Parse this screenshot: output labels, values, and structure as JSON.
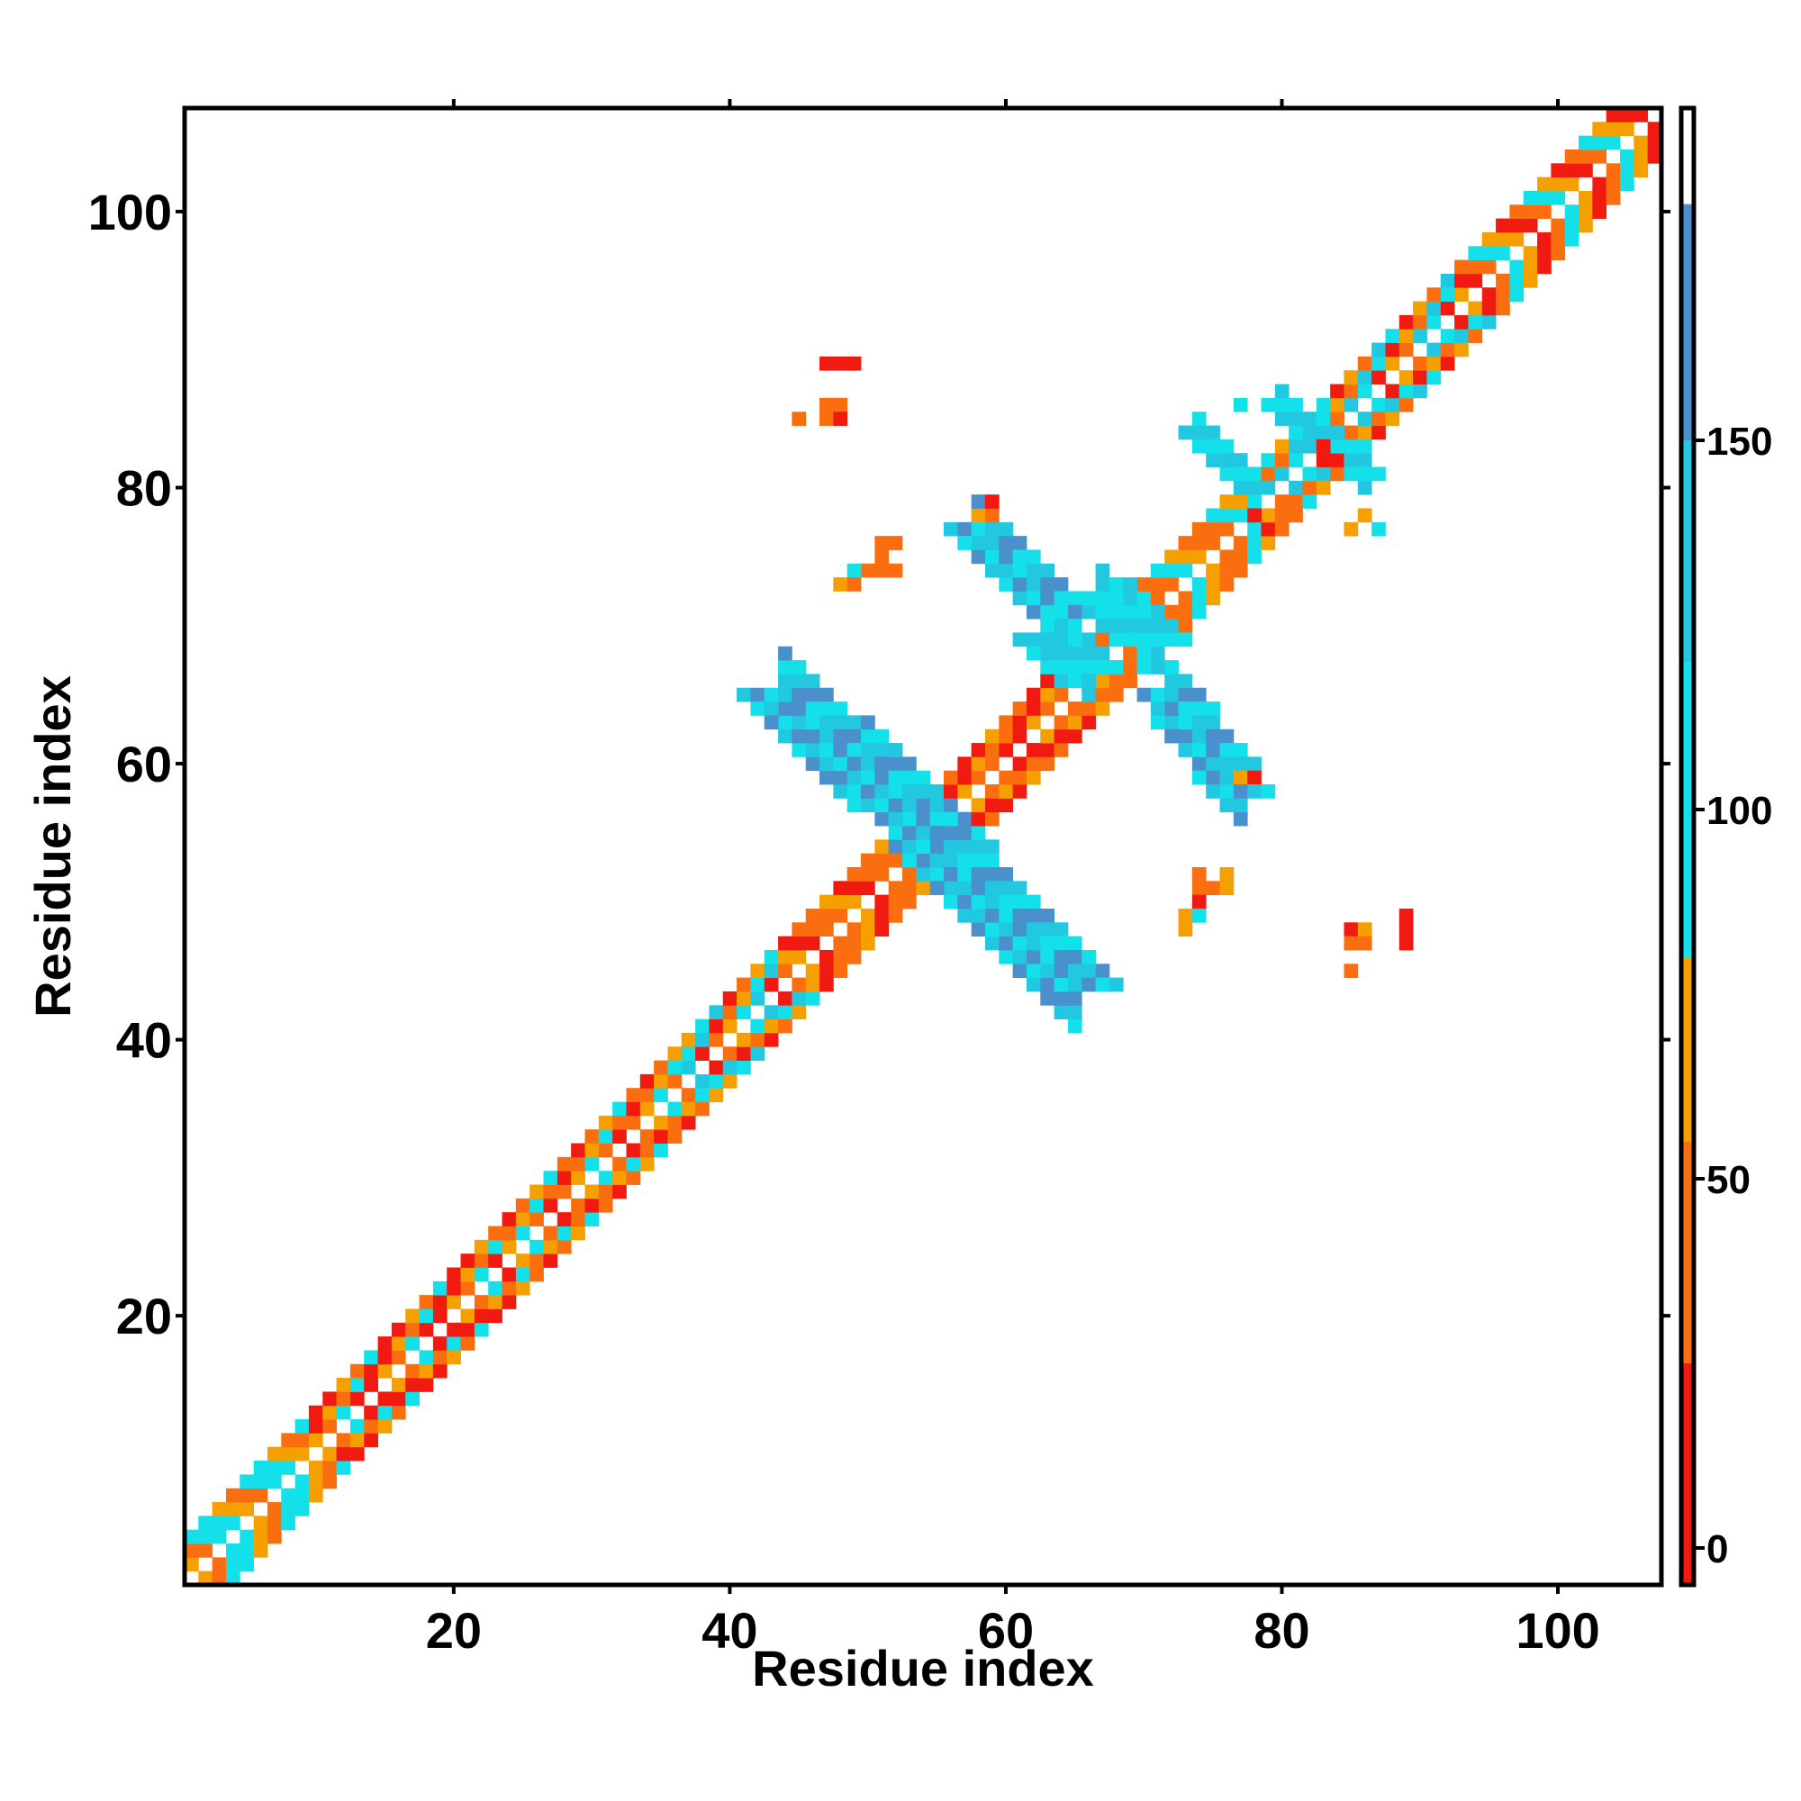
{
  "chart_data": {
    "type": "heatmap",
    "title": "",
    "xlabel": "Residue index",
    "ylabel": "Residue index",
    "xlim": [
      1,
      107
    ],
    "ylim": [
      1,
      107
    ],
    "x_ticks": [
      20,
      40,
      60,
      80,
      100
    ],
    "y_ticks": [
      20,
      40,
      60,
      80,
      100
    ],
    "colorbar": {
      "range": [
        -5,
        195
      ],
      "ticks": [
        0,
        50,
        100,
        150
      ],
      "bands": [
        {
          "from": -5,
          "to": 25,
          "color": "#f01a10"
        },
        {
          "from": 25,
          "to": 55,
          "color": "#fb6e10"
        },
        {
          "from": 55,
          "to": 80,
          "color": "#f5a000"
        },
        {
          "from": 80,
          "to": 120,
          "color": "#14e0ea"
        },
        {
          "from": 120,
          "to": 150,
          "color": "#22c8e0"
        },
        {
          "from": 150,
          "to": 182,
          "color": "#4a90cc"
        },
        {
          "from": 182,
          "to": 195,
          "color": "#ffffff"
        }
      ]
    },
    "palette": {
      "red": "#f01a10",
      "orange": "#fb6e10",
      "amber": "#f5a000",
      "cyan": "#14e0ea",
      "sky": "#22c8e0",
      "steel": "#4a90cc"
    },
    "diagonal_band": {
      "offsets": [
        -3,
        -2,
        -1,
        1,
        2,
        3
      ],
      "segments": [
        {
          "from": 1,
          "to": 10,
          "colors": [
            "cyan",
            "orange",
            "amber",
            "cyan"
          ]
        },
        {
          "from": 10,
          "to": 24,
          "colors": [
            "orange",
            "red",
            "cyan",
            "amber",
            "red"
          ]
        },
        {
          "from": 24,
          "to": 37,
          "colors": [
            "orange",
            "amber",
            "red",
            "cyan",
            "orange"
          ]
        },
        {
          "from": 37,
          "to": 44,
          "colors": [
            "cyan",
            "orange",
            "sky",
            "amber",
            "red"
          ]
        },
        {
          "from": 44,
          "to": 56,
          "colors": [
            "orange",
            "red",
            "amber",
            "orange"
          ]
        },
        {
          "from": 56,
          "to": 66,
          "colors": [
            "red",
            "orange",
            "amber",
            "red",
            "orange"
          ]
        },
        {
          "from": 66,
          "to": 80,
          "colors": [
            "orange",
            "amber",
            "cyan",
            "orange"
          ]
        },
        {
          "from": 80,
          "to": 93,
          "colors": [
            "cyan",
            "orange",
            "red",
            "sky",
            "amber"
          ]
        },
        {
          "from": 93,
          "to": 108,
          "colors": [
            "orange",
            "red",
            "amber",
            "cyan"
          ]
        }
      ]
    },
    "bridges": [
      {
        "start": [
          44,
          65
        ],
        "end": [
          56,
          54
        ],
        "width": 3,
        "colors": [
          "sky",
          "steel",
          "cyan"
        ]
      },
      {
        "start": [
          55,
          54
        ],
        "end": [
          65,
          44
        ],
        "width": 3,
        "colors": [
          "steel",
          "sky",
          "cyan"
        ]
      },
      {
        "start": [
          58,
          77
        ],
        "end": [
          64,
          71
        ],
        "width": 2,
        "colors": [
          "cyan",
          "sky",
          "steel"
        ]
      },
      {
        "start": [
          72,
          65
        ],
        "end": [
          77,
          58
        ],
        "width": 2,
        "colors": [
          "sky",
          "steel",
          "cyan"
        ]
      },
      {
        "start": [
          63,
          69
        ],
        "end": [
          66,
          67
        ],
        "width": 2,
        "colors": [
          "sky",
          "cyan"
        ]
      },
      {
        "start": [
          67,
          72
        ],
        "end": [
          71,
          69
        ],
        "width": 2,
        "colors": [
          "cyan",
          "sky"
        ]
      },
      {
        "start": [
          80,
          86
        ],
        "end": [
          86,
          81
        ],
        "width": 1,
        "colors": [
          "cyan",
          "sky"
        ]
      },
      {
        "start": [
          74,
          84
        ],
        "end": [
          78,
          80
        ],
        "width": 1,
        "colors": [
          "sky",
          "cyan"
        ]
      }
    ],
    "scattered": [
      {
        "x": 47,
        "y": 89,
        "color": "red"
      },
      {
        "x": 48,
        "y": 89,
        "color": "red"
      },
      {
        "x": 49,
        "y": 89,
        "color": "red"
      },
      {
        "x": 45,
        "y": 85,
        "color": "orange"
      },
      {
        "x": 47,
        "y": 86,
        "color": "orange"
      },
      {
        "x": 48,
        "y": 86,
        "color": "orange"
      },
      {
        "x": 47,
        "y": 85,
        "color": "orange"
      },
      {
        "x": 48,
        "y": 85,
        "color": "red"
      },
      {
        "x": 51,
        "y": 76,
        "color": "orange"
      },
      {
        "x": 52,
        "y": 76,
        "color": "orange"
      },
      {
        "x": 51,
        "y": 75,
        "color": "orange"
      },
      {
        "x": 50,
        "y": 74,
        "color": "orange"
      },
      {
        "x": 51,
        "y": 74,
        "color": "orange"
      },
      {
        "x": 52,
        "y": 74,
        "color": "orange"
      },
      {
        "x": 49,
        "y": 74,
        "color": "cyan"
      },
      {
        "x": 48,
        "y": 73,
        "color": "amber"
      },
      {
        "x": 49,
        "y": 73,
        "color": "orange"
      },
      {
        "x": 59,
        "y": 79,
        "color": "red"
      },
      {
        "x": 58,
        "y": 78,
        "color": "amber"
      },
      {
        "x": 59,
        "y": 78,
        "color": "orange"
      },
      {
        "x": 78,
        "y": 59,
        "color": "red"
      },
      {
        "x": 77,
        "y": 59,
        "color": "amber"
      },
      {
        "x": 74,
        "y": 52,
        "color": "orange"
      },
      {
        "x": 76,
        "y": 52,
        "color": "amber"
      },
      {
        "x": 74,
        "y": 51,
        "color": "orange"
      },
      {
        "x": 75,
        "y": 51,
        "color": "orange"
      },
      {
        "x": 76,
        "y": 51,
        "color": "amber"
      },
      {
        "x": 74,
        "y": 50,
        "color": "red"
      },
      {
        "x": 73,
        "y": 49,
        "color": "amber"
      },
      {
        "x": 74,
        "y": 49,
        "color": "cyan"
      },
      {
        "x": 73,
        "y": 48,
        "color": "amber"
      },
      {
        "x": 85,
        "y": 48,
        "color": "red"
      },
      {
        "x": 86,
        "y": 48,
        "color": "amber"
      },
      {
        "x": 85,
        "y": 47,
        "color": "orange"
      },
      {
        "x": 86,
        "y": 47,
        "color": "orange"
      },
      {
        "x": 85,
        "y": 45,
        "color": "orange"
      },
      {
        "x": 89,
        "y": 49,
        "color": "red"
      },
      {
        "x": 89,
        "y": 48,
        "color": "red"
      },
      {
        "x": 89,
        "y": 47,
        "color": "red"
      },
      {
        "x": 77,
        "y": 86,
        "color": "cyan"
      },
      {
        "x": 87,
        "y": 77,
        "color": "cyan"
      },
      {
        "x": 86,
        "y": 78,
        "color": "amber"
      },
      {
        "x": 85,
        "y": 77,
        "color": "amber"
      },
      {
        "x": 83,
        "y": 83,
        "color": "red"
      },
      {
        "x": 84,
        "y": 82,
        "color": "red"
      },
      {
        "x": 78,
        "y": 78,
        "color": "red"
      },
      {
        "x": 79,
        "y": 77,
        "color": "red"
      }
    ]
  }
}
